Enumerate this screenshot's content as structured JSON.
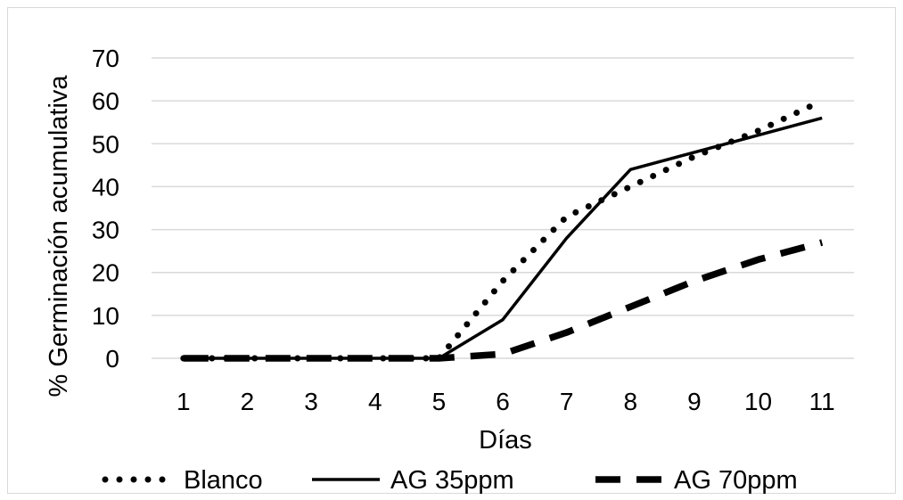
{
  "chart_data": {
    "type": "line",
    "title": "",
    "xlabel": "Días",
    "ylabel": "% Germinación acumulativa",
    "x": [
      1,
      2,
      3,
      4,
      5,
      6,
      7,
      8,
      9,
      10,
      11
    ],
    "ylim": [
      0,
      70
    ],
    "yticks": [
      0,
      10,
      20,
      30,
      40,
      50,
      60,
      70
    ],
    "grid": "horizontal",
    "legend_position": "bottom",
    "series": [
      {
        "name": "Blanco",
        "style": "dotted",
        "color": "#000000",
        "values": [
          0,
          0,
          0,
          0,
          0,
          18,
          33,
          40,
          47,
          53,
          60
        ]
      },
      {
        "name": "AG 35ppm",
        "style": "solid",
        "color": "#000000",
        "values": [
          0,
          0,
          0,
          0,
          0,
          9,
          28,
          44,
          48,
          52,
          56
        ]
      },
      {
        "name": "AG 70ppm",
        "style": "dashed",
        "color": "#000000",
        "values": [
          0,
          0,
          0,
          0,
          0,
          1,
          6,
          12,
          18,
          23,
          27
        ]
      }
    ]
  }
}
